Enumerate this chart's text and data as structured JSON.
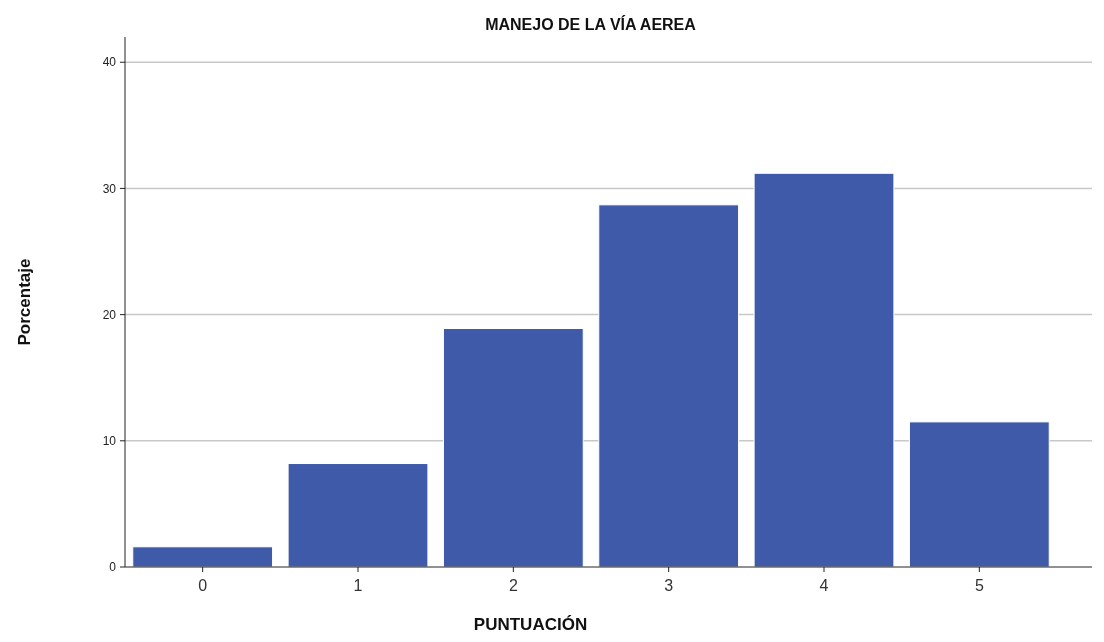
{
  "chart_data": {
    "type": "bar",
    "title": "MANEJO DE LA VÍA AEREA",
    "xlabel": "PUNTUACIÓN",
    "ylabel": "Porcentaje",
    "categories": [
      "0",
      "1",
      "2",
      "3",
      "4",
      "5"
    ],
    "values": [
      1.6,
      8.2,
      18.9,
      28.7,
      31.2,
      11.5
    ],
    "color": "#3f5aa8",
    "ylim": [
      0,
      42
    ],
    "yticks": [
      0,
      10,
      20,
      30,
      40
    ],
    "grid": "y"
  }
}
